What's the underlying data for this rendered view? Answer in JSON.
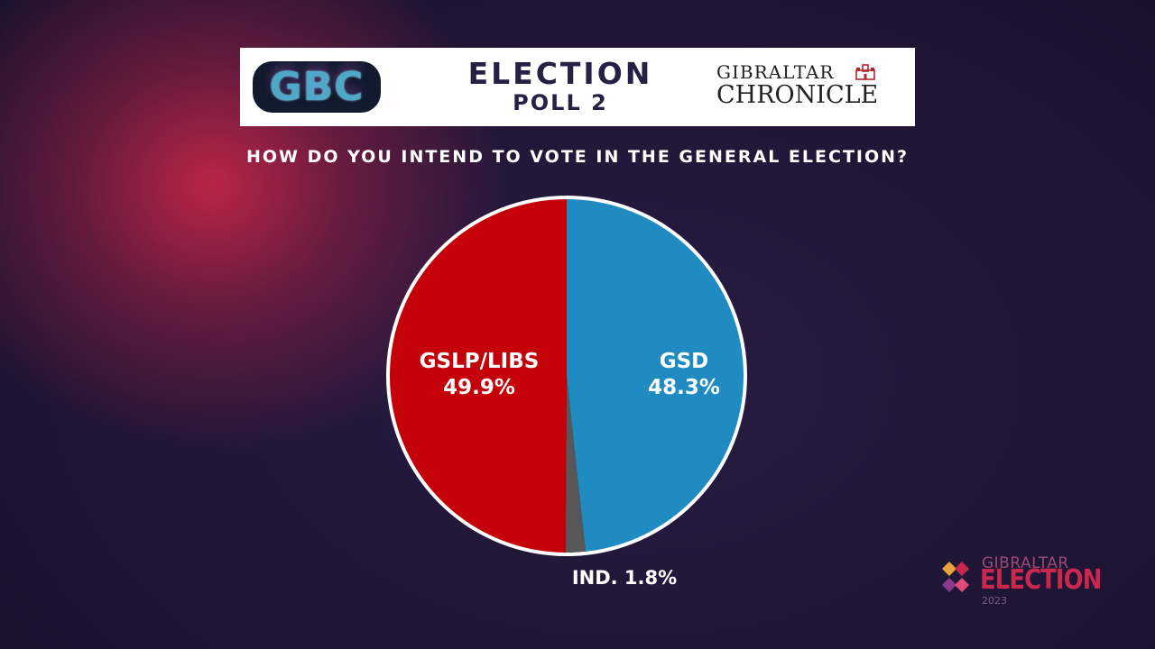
{
  "header": {
    "gbc_logo_text": "GBC",
    "title_line1": "ELECTION",
    "title_line2": "POLL 2",
    "chronicle_top": "GIBRALTAR",
    "chronicle_bottom": "CHRONICLE"
  },
  "question": "HOW DO YOU INTEND TO VOTE IN THE GENERAL ELECTION?",
  "chart_data": {
    "type": "pie",
    "title": "",
    "slices": [
      {
        "label": "GSD",
        "value": 48.3,
        "value_label": "48.3%",
        "color": "#1f8bc0"
      },
      {
        "label": "IND.",
        "value": 1.8,
        "value_label": "1.8%",
        "color": "#575759"
      },
      {
        "label": "GSLP/LIBS",
        "value": 49.9,
        "value_label": "49.9%",
        "color": "#c40008"
      }
    ],
    "outline_color": "#ffffff",
    "start": "12 o'clock",
    "direction": "clockwise"
  },
  "footer_logo": {
    "top": "GIBRALTAR",
    "main": "ELECTION",
    "year": "2023",
    "colors": [
      "#e8a33c",
      "#c8284e",
      "#8a3a8c",
      "#e04a7a"
    ]
  }
}
